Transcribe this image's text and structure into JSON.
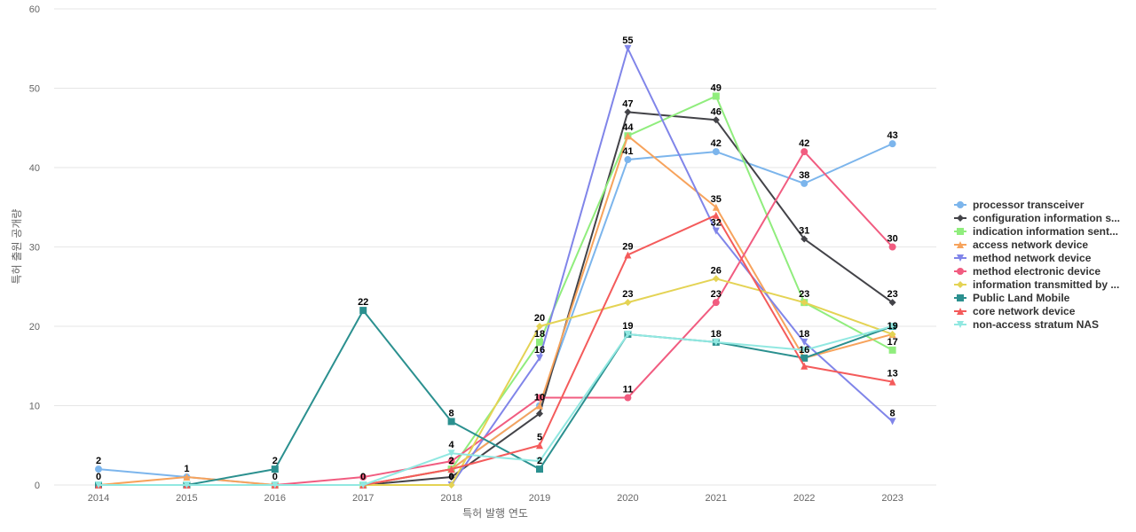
{
  "chart_data": {
    "type": "line",
    "title": "",
    "xlabel": "특허 발행 연도",
    "ylabel": "특허 출원 공개량",
    "x": [
      "2014",
      "2015",
      "2016",
      "2017",
      "2018",
      "2019",
      "2020",
      "2021",
      "2022",
      "2023"
    ],
    "ylim": [
      0,
      60
    ],
    "yticks": [
      0,
      10,
      20,
      30,
      40,
      50,
      60
    ],
    "grid": true,
    "legend_position": "right",
    "series": [
      {
        "name": "processor transceiver",
        "color": "#7cb5ec",
        "marker": "circle",
        "values": [
          2,
          1,
          0,
          0,
          2,
          10,
          41,
          42,
          38,
          43
        ]
      },
      {
        "name": "configuration information s...",
        "color": "#434348",
        "marker": "diamond",
        "values": [
          0,
          0,
          0,
          0,
          1,
          9,
          47,
          46,
          31,
          23
        ]
      },
      {
        "name": "indication information sent...",
        "color": "#90ed7d",
        "marker": "square",
        "values": [
          0,
          0,
          0,
          0,
          2,
          18,
          44,
          49,
          23,
          17
        ]
      },
      {
        "name": "access network device",
        "color": "#f7a35c",
        "marker": "triangle",
        "values": [
          0,
          1,
          0,
          0,
          2,
          10,
          44,
          35,
          16,
          19
        ]
      },
      {
        "name": "method network device",
        "color": "#8085e9",
        "marker": "triangle-down",
        "values": [
          0,
          0,
          0,
          0,
          0,
          16,
          55,
          32,
          18,
          8
        ]
      },
      {
        "name": "method electronic device",
        "color": "#f15c80",
        "marker": "circle",
        "values": [
          0,
          0,
          0,
          1,
          3,
          11,
          11,
          23,
          42,
          30
        ]
      },
      {
        "name": "information transmitted by ...",
        "color": "#e4d354",
        "marker": "diamond",
        "values": [
          0,
          0,
          0,
          0,
          0,
          20,
          23,
          26,
          23,
          19
        ]
      },
      {
        "name": "Public Land Mobile",
        "color": "#2b908f",
        "marker": "square",
        "values": [
          0,
          0,
          2,
          22,
          8,
          2,
          19,
          18,
          16,
          20
        ]
      },
      {
        "name": "core network device",
        "color": "#f45b5b",
        "marker": "triangle",
        "values": [
          0,
          0,
          0,
          0,
          2,
          5,
          29,
          34,
          15,
          13
        ]
      },
      {
        "name": "non-access stratum NAS",
        "color": "#91e8e1",
        "marker": "triangle-down",
        "values": [
          0,
          0,
          0,
          0,
          4,
          3,
          19,
          18,
          17,
          20
        ]
      }
    ],
    "data_labels": [
      {
        "x": "2014",
        "value": 2
      },
      {
        "x": "2014",
        "value": 0
      },
      {
        "x": "2015",
        "value": 1
      },
      {
        "x": "2016",
        "value": 2
      },
      {
        "x": "2016",
        "value": 0
      },
      {
        "x": "2017",
        "value": 22
      },
      {
        "x": "2017",
        "value": 0
      },
      {
        "x": "2018",
        "value": 8
      },
      {
        "x": "2018",
        "value": 4
      },
      {
        "x": "2018",
        "value": 2
      },
      {
        "x": "2018",
        "value": 0
      },
      {
        "x": "2019",
        "value": 20
      },
      {
        "x": "2019",
        "value": 18
      },
      {
        "x": "2019",
        "value": 16
      },
      {
        "x": "2019",
        "value": 10
      },
      {
        "x": "2019",
        "value": 5
      },
      {
        "x": "2019",
        "value": 2
      },
      {
        "x": "2020",
        "value": 55
      },
      {
        "x": "2020",
        "value": 47
      },
      {
        "x": "2020",
        "value": 44
      },
      {
        "x": "2020",
        "value": 41
      },
      {
        "x": "2020",
        "value": 29
      },
      {
        "x": "2020",
        "value": 23
      },
      {
        "x": "2020",
        "value": 19
      },
      {
        "x": "2020",
        "value": 11
      },
      {
        "x": "2021",
        "value": 49
      },
      {
        "x": "2021",
        "value": 46
      },
      {
        "x": "2021",
        "value": 42
      },
      {
        "x": "2021",
        "value": 35
      },
      {
        "x": "2021",
        "value": 32
      },
      {
        "x": "2021",
        "value": 26
      },
      {
        "x": "2021",
        "value": 23
      },
      {
        "x": "2021",
        "value": 18
      },
      {
        "x": "2022",
        "value": 42
      },
      {
        "x": "2022",
        "value": 38
      },
      {
        "x": "2022",
        "value": 31
      },
      {
        "x": "2022",
        "value": 23
      },
      {
        "x": "2022",
        "value": 18
      },
      {
        "x": "2022",
        "value": 16
      },
      {
        "x": "2023",
        "value": 43
      },
      {
        "x": "2023",
        "value": 30
      },
      {
        "x": "2023",
        "value": 23
      },
      {
        "x": "2023",
        "value": 19
      },
      {
        "x": "2023",
        "value": 17
      },
      {
        "x": "2023",
        "value": 13
      },
      {
        "x": "2023",
        "value": 8
      }
    ]
  }
}
